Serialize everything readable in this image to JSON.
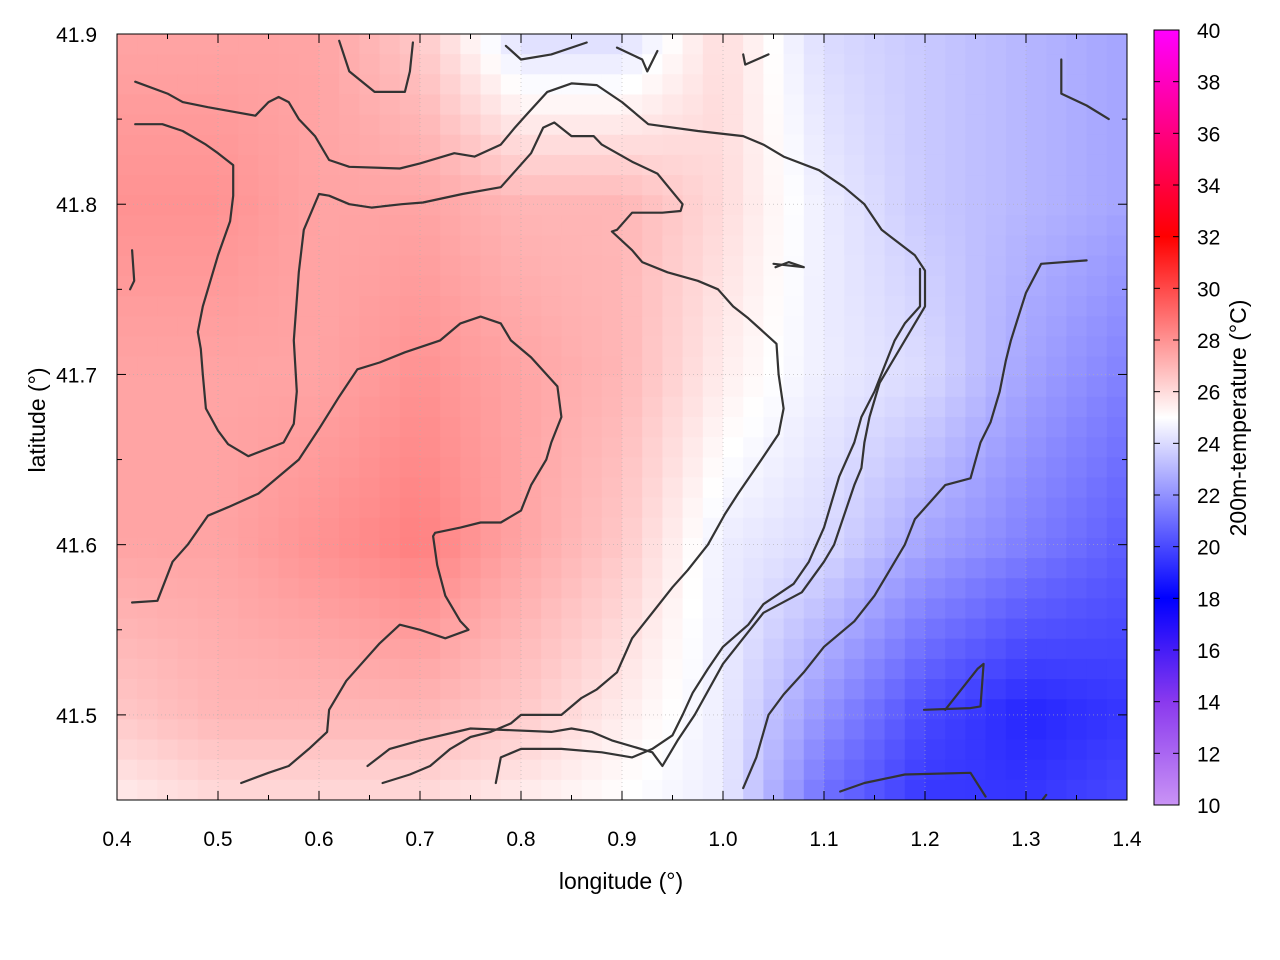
{
  "chart_data": {
    "type": "heatmap",
    "title": "",
    "xlabel": "longitude (°)",
    "ylabel": "latitude (°)",
    "colorbar_label": "200m-temperature (°C)",
    "xlim": [
      0.4,
      1.4
    ],
    "ylim": [
      41.45,
      41.9
    ],
    "x_ticks": [
      "0.4",
      "0.5",
      "0.6",
      "0.7",
      "0.8",
      "0.9",
      "1.0",
      "1.1",
      "1.2",
      "1.3",
      "1.4"
    ],
    "y_ticks": [
      "41.5",
      "41.6",
      "41.7",
      "41.8",
      "41.9"
    ],
    "color_range": [
      10,
      40
    ],
    "colorbar_ticks": [
      "10",
      "12",
      "14",
      "16",
      "18",
      "20",
      "22",
      "24",
      "26",
      "28",
      "30",
      "32",
      "34",
      "36",
      "38",
      "40"
    ],
    "colorscale": [
      {
        "value": 10,
        "color": "#c993f5"
      },
      {
        "value": 14,
        "color": "#8a39ee"
      },
      {
        "value": 18,
        "color": "#0000ff"
      },
      {
        "value": 25,
        "color": "#ffffff"
      },
      {
        "value": 32,
        "color": "#ff0000"
      },
      {
        "value": 40,
        "color": "#ff00ff"
      }
    ],
    "grid": true,
    "field_grid": {
      "lon": [
        0.4,
        0.5,
        0.6,
        0.7,
        0.8,
        0.9,
        1.0,
        1.1,
        1.2,
        1.3,
        1.4
      ],
      "lat": [
        41.9,
        41.8,
        41.7,
        41.6,
        41.5,
        41.45
      ],
      "temperature": [
        [
          27.5,
          27.5,
          27.5,
          26.5,
          24.0,
          24.0,
          26.0,
          24.0,
          23.5,
          23.0,
          22.5
        ],
        [
          28.0,
          28.0,
          27.5,
          27.5,
          27.0,
          27.0,
          26.0,
          24.5,
          23.5,
          23.0,
          22.5
        ],
        [
          27.5,
          27.5,
          27.5,
          28.0,
          27.5,
          27.0,
          25.5,
          24.5,
          24.0,
          22.5,
          21.5
        ],
        [
          27.5,
          27.5,
          28.0,
          28.5,
          27.5,
          26.5,
          24.5,
          24.0,
          22.5,
          21.5,
          20.5
        ],
        [
          26.5,
          27.0,
          27.0,
          27.0,
          26.5,
          25.5,
          24.5,
          22.0,
          20.0,
          19.0,
          19.5
        ],
        [
          25.5,
          26.0,
          26.0,
          26.0,
          25.5,
          25.0,
          24.5,
          21.0,
          19.5,
          19.5,
          20.0
        ]
      ]
    },
    "contour_color": "#333333",
    "contours": [
      [
        [
          0.418,
          41.872
        ],
        [
          0.45,
          41.865
        ],
        [
          0.465,
          41.86
        ],
        [
          0.49,
          41.857
        ],
        [
          0.537,
          41.852
        ],
        [
          0.55,
          41.86
        ],
        [
          0.56,
          41.863
        ],
        [
          0.57,
          41.86
        ],
        [
          0.58,
          41.85
        ],
        [
          0.596,
          41.84
        ],
        [
          0.61,
          41.826
        ],
        [
          0.63,
          41.822
        ],
        [
          0.68,
          41.821
        ],
        [
          0.7,
          41.824
        ],
        [
          0.734,
          41.83
        ],
        [
          0.754,
          41.828
        ],
        [
          0.78,
          41.835
        ],
        [
          0.794,
          41.845
        ],
        [
          0.806,
          41.853
        ],
        [
          0.826,
          41.866
        ],
        [
          0.85,
          41.871
        ],
        [
          0.875,
          41.87
        ],
        [
          0.9,
          41.86
        ],
        [
          0.926,
          41.847
        ],
        [
          0.975,
          41.843
        ],
        [
          1.02,
          41.84
        ],
        [
          1.04,
          41.835
        ],
        [
          1.06,
          41.828
        ],
        [
          1.095,
          41.82
        ],
        [
          1.12,
          41.81
        ],
        [
          1.14,
          41.8
        ],
        [
          1.157,
          41.785
        ],
        [
          1.19,
          41.77
        ],
        [
          1.2,
          41.761
        ],
        [
          1.2,
          41.74
        ],
        [
          1.19,
          41.73
        ],
        [
          1.18,
          41.72
        ],
        [
          1.155,
          41.695
        ],
        [
          1.145,
          41.675
        ],
        [
          1.14,
          41.66
        ],
        [
          1.137,
          41.645
        ],
        [
          1.13,
          41.635
        ],
        [
          1.11,
          41.6
        ],
        [
          1.1,
          41.59
        ],
        [
          1.078,
          41.572
        ],
        [
          1.04,
          41.56
        ],
        [
          1.0,
          41.53
        ],
        [
          0.972,
          41.5
        ],
        [
          0.955,
          41.485
        ],
        [
          0.94,
          41.47
        ],
        [
          0.93,
          41.478
        ],
        [
          0.89,
          41.485
        ],
        [
          0.87,
          41.49
        ],
        [
          0.85,
          41.492
        ],
        [
          0.83,
          41.49
        ],
        [
          0.75,
          41.492
        ],
        [
          0.7,
          41.485
        ],
        [
          0.67,
          41.48
        ],
        [
          0.648,
          41.47
        ]
      ],
      [
        [
          0.418,
          41.847
        ],
        [
          0.445,
          41.847
        ],
        [
          0.465,
          41.843
        ],
        [
          0.488,
          41.835
        ],
        [
          0.5,
          41.83
        ],
        [
          0.515,
          41.823
        ],
        [
          0.515,
          41.805
        ],
        [
          0.512,
          41.79
        ],
        [
          0.5,
          41.77
        ],
        [
          0.485,
          41.74
        ],
        [
          0.48,
          41.725
        ],
        [
          0.483,
          41.715
        ],
        [
          0.485,
          41.7
        ],
        [
          0.488,
          41.68
        ],
        [
          0.5,
          41.667
        ],
        [
          0.51,
          41.659
        ],
        [
          0.53,
          41.652
        ],
        [
          0.565,
          41.66
        ],
        [
          0.575,
          41.671
        ],
        [
          0.578,
          41.69
        ],
        [
          0.575,
          41.72
        ],
        [
          0.58,
          41.76
        ],
        [
          0.585,
          41.785
        ],
        [
          0.6,
          41.806
        ],
        [
          0.61,
          41.805
        ],
        [
          0.63,
          41.8
        ],
        [
          0.652,
          41.798
        ],
        [
          0.682,
          41.8
        ],
        [
          0.703,
          41.801
        ],
        [
          0.742,
          41.806
        ],
        [
          0.78,
          41.81
        ],
        [
          0.81,
          41.83
        ],
        [
          0.822,
          41.845
        ],
        [
          0.833,
          41.848
        ],
        [
          0.85,
          41.84
        ],
        [
          0.872,
          41.84
        ],
        [
          0.88,
          41.835
        ],
        [
          0.91,
          41.825
        ],
        [
          0.935,
          41.818
        ],
        [
          0.96,
          41.8
        ],
        [
          0.958,
          41.796
        ],
        [
          0.94,
          41.795
        ],
        [
          0.91,
          41.795
        ],
        [
          0.895,
          41.785
        ],
        [
          0.89,
          41.784
        ],
        [
          0.91,
          41.773
        ],
        [
          0.92,
          41.766
        ],
        [
          0.945,
          41.76
        ],
        [
          0.975,
          41.755
        ],
        [
          0.995,
          41.75
        ],
        [
          1.01,
          41.74
        ],
        [
          1.025,
          41.733
        ],
        [
          1.04,
          41.725
        ],
        [
          1.053,
          41.718
        ],
        [
          1.055,
          41.7
        ],
        [
          1.06,
          41.68
        ],
        [
          1.055,
          41.665
        ],
        [
          1.038,
          41.65
        ],
        [
          1.015,
          41.63
        ],
        [
          1.002,
          41.618
        ],
        [
          0.985,
          41.6
        ],
        [
          0.965,
          41.585
        ],
        [
          0.95,
          41.575
        ],
        [
          0.93,
          41.56
        ],
        [
          0.91,
          41.545
        ],
        [
          0.895,
          41.525
        ],
        [
          0.875,
          41.515
        ],
        [
          0.86,
          41.51
        ],
        [
          0.84,
          41.5
        ],
        [
          0.8,
          41.5
        ],
        [
          0.79,
          41.495
        ],
        [
          0.77,
          41.49
        ],
        [
          0.75,
          41.487
        ],
        [
          0.73,
          41.48
        ],
        [
          0.71,
          41.47
        ],
        [
          0.69,
          41.465
        ],
        [
          0.663,
          41.46
        ]
      ],
      [
        [
          0.415,
          41.566
        ],
        [
          0.44,
          41.567
        ],
        [
          0.455,
          41.59
        ],
        [
          0.47,
          41.6
        ],
        [
          0.49,
          41.617
        ],
        [
          0.51,
          41.622
        ],
        [
          0.54,
          41.63
        ],
        [
          0.56,
          41.64
        ],
        [
          0.58,
          41.65
        ],
        [
          0.6,
          41.668
        ],
        [
          0.62,
          41.687
        ],
        [
          0.638,
          41.703
        ],
        [
          0.66,
          41.707
        ],
        [
          0.685,
          41.713
        ],
        [
          0.72,
          41.72
        ],
        [
          0.74,
          41.73
        ],
        [
          0.76,
          41.734
        ],
        [
          0.78,
          41.73
        ],
        [
          0.79,
          41.72
        ],
        [
          0.81,
          41.71
        ],
        [
          0.836,
          41.693
        ],
        [
          0.84,
          41.675
        ],
        [
          0.83,
          41.66
        ],
        [
          0.825,
          41.65
        ],
        [
          0.81,
          41.635
        ],
        [
          0.8,
          41.62
        ],
        [
          0.78,
          41.613
        ],
        [
          0.76,
          41.613
        ],
        [
          0.74,
          41.61
        ],
        [
          0.715,
          41.607
        ],
        [
          0.713,
          41.605
        ],
        [
          0.717,
          41.588
        ],
        [
          0.725,
          41.57
        ],
        [
          0.74,
          41.555
        ],
        [
          0.748,
          41.55
        ],
        [
          0.725,
          41.545
        ],
        [
          0.7,
          41.55
        ],
        [
          0.68,
          41.553
        ],
        [
          0.66,
          41.542
        ],
        [
          0.642,
          41.53
        ],
        [
          0.627,
          41.52
        ],
        [
          0.61,
          41.503
        ],
        [
          0.608,
          41.49
        ],
        [
          0.59,
          41.48
        ],
        [
          0.57,
          41.47
        ],
        [
          0.55,
          41.466
        ],
        [
          0.523,
          41.46
        ]
      ],
      [
        [
          0.775,
          41.46
        ],
        [
          0.78,
          41.475
        ],
        [
          0.8,
          41.48
        ],
        [
          0.84,
          41.48
        ],
        [
          0.88,
          41.478
        ],
        [
          0.91,
          41.475
        ],
        [
          0.93,
          41.48
        ],
        [
          0.95,
          41.488
        ],
        [
          0.96,
          41.5
        ],
        [
          0.97,
          41.513
        ],
        [
          0.985,
          41.527
        ],
        [
          1.0,
          41.54
        ],
        [
          1.025,
          41.553
        ],
        [
          1.04,
          41.565
        ],
        [
          1.07,
          41.577
        ],
        [
          1.085,
          41.59
        ],
        [
          1.1,
          41.61
        ],
        [
          1.115,
          41.64
        ],
        [
          1.13,
          41.66
        ],
        [
          1.137,
          41.675
        ],
        [
          1.15,
          41.69
        ],
        [
          1.17,
          41.72
        ],
        [
          1.18,
          41.73
        ],
        [
          1.195,
          41.74
        ],
        [
          1.195,
          41.762
        ]
      ],
      [
        [
          1.02,
          41.457
        ],
        [
          1.033,
          41.475
        ],
        [
          1.045,
          41.5
        ],
        [
          1.06,
          41.512
        ],
        [
          1.08,
          41.525
        ],
        [
          1.1,
          41.54
        ],
        [
          1.13,
          41.555
        ],
        [
          1.15,
          41.57
        ],
        [
          1.165,
          41.585
        ],
        [
          1.18,
          41.6
        ],
        [
          1.19,
          41.615
        ],
        [
          1.205,
          41.625
        ],
        [
          1.22,
          41.635
        ],
        [
          1.245,
          41.639
        ],
        [
          1.255,
          41.66
        ],
        [
          1.265,
          41.672
        ],
        [
          1.274,
          41.69
        ],
        [
          1.28,
          41.708
        ],
        [
          1.285,
          41.72
        ],
        [
          1.293,
          41.735
        ],
        [
          1.3,
          41.748
        ],
        [
          1.315,
          41.765
        ],
        [
          1.36,
          41.767
        ]
      ],
      [
        [
          1.116,
          41.455
        ],
        [
          1.14,
          41.46
        ],
        [
          1.18,
          41.465
        ],
        [
          1.245,
          41.466
        ],
        [
          1.26,
          41.452
        ]
      ],
      [
        [
          1.199,
          41.503
        ],
        [
          1.245,
          41.504
        ],
        [
          1.255,
          41.505
        ],
        [
          1.258,
          41.53
        ],
        [
          1.252,
          41.527
        ],
        [
          1.22,
          41.503
        ]
      ],
      [
        [
          1.05,
          41.765
        ],
        [
          1.08,
          41.763
        ],
        [
          1.065,
          41.766
        ],
        [
          1.052,
          41.763
        ]
      ],
      [
        [
          0.62,
          41.896
        ],
        [
          0.63,
          41.878
        ],
        [
          0.655,
          41.866
        ],
        [
          0.685,
          41.866
        ],
        [
          0.69,
          41.878
        ],
        [
          0.693,
          41.895
        ]
      ],
      [
        [
          0.785,
          41.893
        ],
        [
          0.8,
          41.885
        ],
        [
          0.83,
          41.888
        ],
        [
          0.865,
          41.895
        ]
      ],
      [
        [
          0.895,
          41.892
        ],
        [
          0.92,
          41.885
        ],
        [
          0.925,
          41.878
        ],
        [
          0.935,
          41.89
        ]
      ],
      [
        [
          1.02,
          41.888
        ],
        [
          1.022,
          41.882
        ],
        [
          1.045,
          41.888
        ]
      ],
      [
        [
          1.335,
          41.885
        ],
        [
          1.335,
          41.865
        ],
        [
          1.36,
          41.858
        ],
        [
          1.382,
          41.85
        ]
      ],
      [
        [
          0.415,
          41.773
        ],
        [
          0.417,
          41.755
        ],
        [
          0.413,
          41.75
        ]
      ],
      [
        [
          1.316,
          41.45
        ],
        [
          1.32,
          41.453
        ]
      ]
    ]
  }
}
